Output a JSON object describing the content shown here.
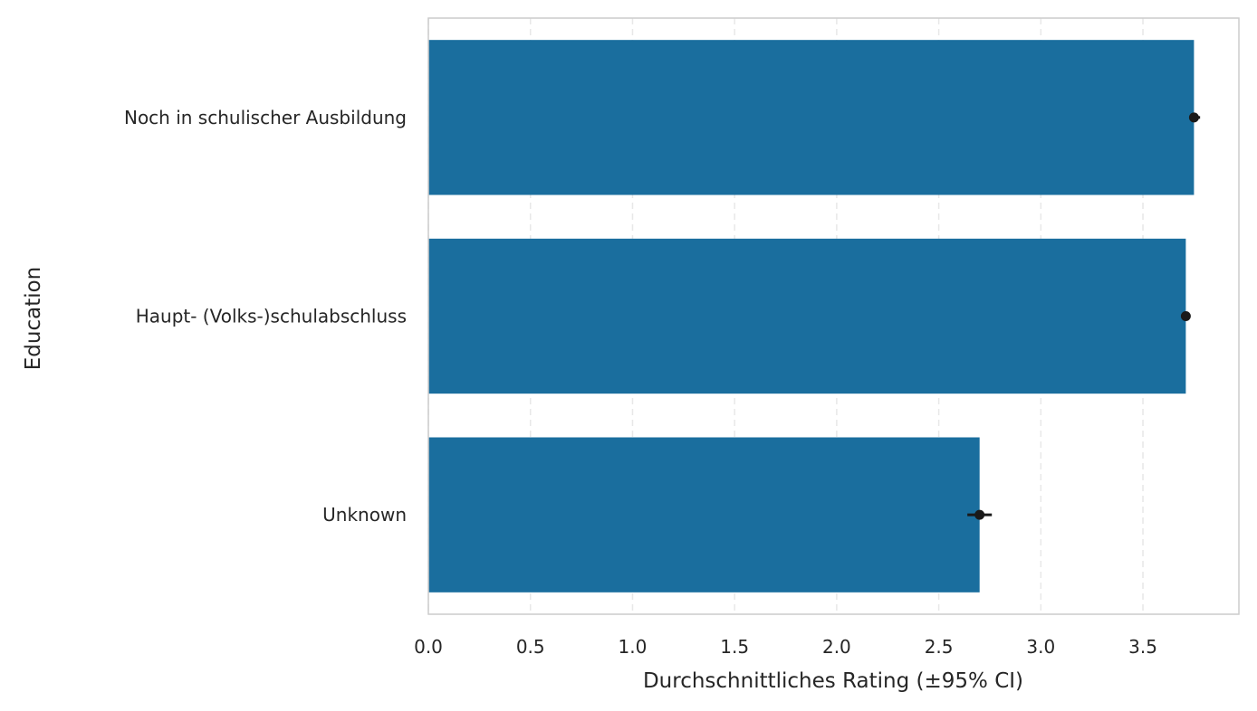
{
  "chart_data": {
    "type": "bar",
    "orientation": "horizontal",
    "categories": [
      "Noch in schulischer Ausbildung",
      "Haupt- (Volks-)schulabschluss",
      "Unknown"
    ],
    "values": [
      3.75,
      3.71,
      2.7
    ],
    "ci_low": [
      3.73,
      3.7,
      2.64
    ],
    "ci_high": [
      3.78,
      3.72,
      2.76
    ],
    "xlabel": "Durchschnittliches Rating (±95% CI)",
    "ylabel": "Education",
    "xlim": [
      0,
      3.97
    ],
    "xticks": [
      0.0,
      0.5,
      1.0,
      1.5,
      2.0,
      2.5,
      3.0,
      3.5
    ],
    "xtick_labels": [
      "0.0",
      "0.5",
      "1.0",
      "1.5",
      "2.0",
      "2.5",
      "3.0",
      "3.5"
    ],
    "grid": "x dashed",
    "colors": {
      "bar": "#1a6e9e",
      "error": "#1a1a1a",
      "grid": "#e8e8e8",
      "frame": "#cccccc"
    }
  }
}
